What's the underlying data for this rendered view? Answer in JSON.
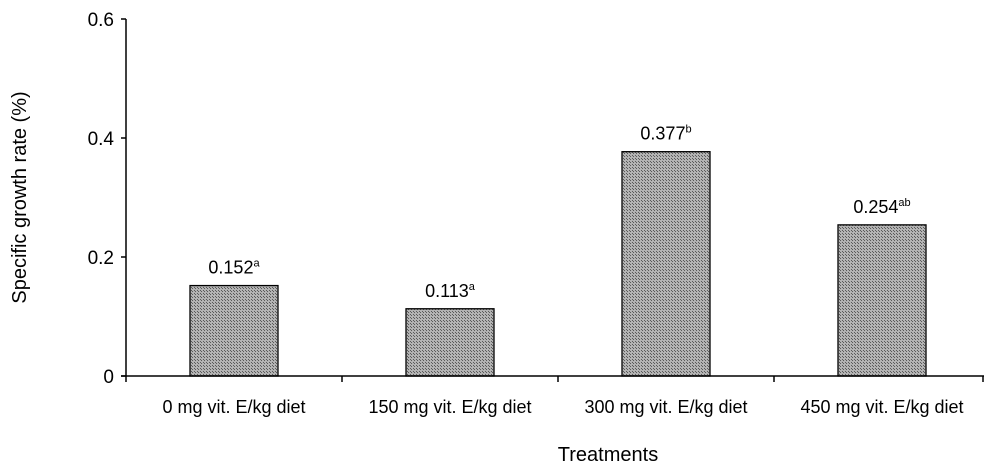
{
  "chart_data": {
    "type": "bar",
    "title": "",
    "xlabel": "Treatments",
    "ylabel": "Specific growth rate (%)",
    "ylim": [
      0,
      0.6
    ],
    "yticks": [
      0,
      0.2,
      0.4,
      0.6
    ],
    "ytick_labels": [
      "0",
      "0.2",
      "0.4",
      "0.6"
    ],
    "categories": [
      "0 mg vit. E/kg diet",
      "150 mg vit. E/kg diet",
      "300 mg vit. E/kg diet",
      "450 mg vit. E/kg diet"
    ],
    "values": [
      0.152,
      0.113,
      0.377,
      0.254
    ],
    "value_labels": [
      "0.152",
      "0.113",
      "0.377",
      "0.254"
    ],
    "significance_letters": [
      "a",
      "a",
      "b",
      "ab"
    ],
    "bar_fill": "#8c8c8c",
    "bar_pattern": "crosshatch-gray",
    "grid": false,
    "legend": "none"
  }
}
